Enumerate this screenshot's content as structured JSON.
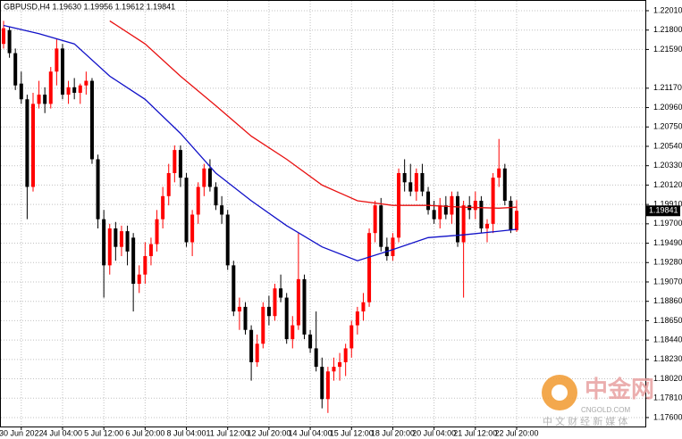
{
  "chart_data": {
    "type": "candlestick",
    "title": "GBPUSD,H4  1.19630 1.19956 1.19612 1.19841",
    "categories": [
      null,
      null,
      null,
      "30 Jun 2022",
      null,
      null,
      null,
      null,
      null,
      null,
      "4 Jul 04:00",
      null,
      null,
      null,
      null,
      null,
      null,
      "5 Jul 12:00",
      null,
      null,
      null,
      null,
      null,
      null,
      "6 Jul 20:00",
      null,
      null,
      null,
      null,
      null,
      null,
      "8 Jul 04:00",
      null,
      null,
      null,
      null,
      null,
      null,
      "11 Jul 12:00",
      null,
      null,
      null,
      null,
      null,
      null,
      "12 Jul 20:00",
      null,
      null,
      null,
      null,
      null,
      null,
      "14 Jul 04:00",
      null,
      null,
      null,
      null,
      null,
      null,
      "15 Jul 12:00",
      null,
      null,
      null,
      null,
      null,
      null,
      "18 Jul 20:00",
      null,
      null,
      null,
      null,
      null,
      null,
      "20 Jul 04:00",
      null,
      null,
      null,
      null,
      null,
      null,
      "21 Jul 12:00",
      null,
      null,
      null,
      null,
      null,
      null,
      "22 Jul 20:00"
    ],
    "ohlc": [
      [
        1.2165,
        1.219,
        1.216,
        1.2182
      ],
      [
        1.218,
        1.2184,
        1.215,
        1.2155
      ],
      [
        1.2155,
        1.216,
        1.2115,
        1.212
      ],
      [
        1.2122,
        1.2135,
        1.21,
        1.2105
      ],
      [
        1.2105,
        1.211,
        1.1975,
        1.201
      ],
      [
        1.201,
        1.2112,
        1.2005,
        1.21
      ],
      [
        1.21,
        1.2125,
        1.2095,
        1.211
      ],
      [
        1.211,
        1.2118,
        1.209,
        1.21
      ],
      [
        1.21,
        1.214,
        1.2095,
        1.2135
      ],
      [
        1.2135,
        1.217,
        1.212,
        1.216
      ],
      [
        1.216,
        1.2165,
        1.2105,
        1.211
      ],
      [
        1.211,
        1.2125,
        1.21,
        1.2118
      ],
      [
        1.2118,
        1.2128,
        1.2105,
        1.2112
      ],
      [
        1.2112,
        1.2122,
        1.21,
        1.212
      ],
      [
        1.212,
        1.2135,
        1.211,
        1.2125
      ],
      [
        1.2125,
        1.2128,
        1.2035,
        1.204
      ],
      [
        1.204,
        1.2045,
        1.1965,
        1.1975
      ],
      [
        1.1975,
        1.1985,
        1.189,
        1.1925
      ],
      [
        1.1925,
        1.197,
        1.1915,
        1.1965
      ],
      [
        1.1965,
        1.1972,
        1.193,
        1.1945
      ],
      [
        1.1945,
        1.1968,
        1.1935,
        1.1962
      ],
      [
        1.1962,
        1.1968,
        1.1925,
        1.194
      ],
      [
        1.1955,
        1.196,
        1.1875,
        1.1905
      ],
      [
        1.1905,
        1.1925,
        1.1895,
        1.1915
      ],
      [
        1.1915,
        1.195,
        1.1905,
        1.1935
      ],
      [
        1.1935,
        1.1955,
        1.1925,
        1.1948
      ],
      [
        1.1948,
        1.1985,
        1.194,
        1.1975
      ],
      [
        1.1975,
        1.201,
        1.1965,
        1.2
      ],
      [
        1.2,
        1.2035,
        1.199,
        1.2025
      ],
      [
        1.2025,
        1.2055,
        1.2015,
        1.205
      ],
      [
        1.205,
        1.2055,
        1.201,
        1.202
      ],
      [
        1.202,
        1.2025,
        1.1945,
        1.195
      ],
      [
        1.195,
        1.1985,
        1.1935,
        1.198
      ],
      [
        1.198,
        1.2015,
        1.197,
        1.201
      ],
      [
        1.201,
        1.2035,
        1.2,
        1.203
      ],
      [
        1.203,
        1.204,
        1.2005,
        1.201
      ],
      [
        1.201,
        1.2015,
        1.1985,
        1.199
      ],
      [
        1.199,
        1.2,
        1.197,
        1.198
      ],
      [
        1.198,
        1.1985,
        1.192,
        1.1925
      ],
      [
        1.1925,
        1.193,
        1.187,
        1.1875
      ],
      [
        1.1875,
        1.189,
        1.1855,
        1.188
      ],
      [
        1.188,
        1.1885,
        1.185,
        1.1855
      ],
      [
        1.1855,
        1.186,
        1.18,
        1.182
      ],
      [
        1.182,
        1.185,
        1.1815,
        1.184
      ],
      [
        1.184,
        1.1885,
        1.1835,
        1.188
      ],
      [
        1.188,
        1.1892,
        1.186,
        1.187
      ],
      [
        1.187,
        1.1905,
        1.1865,
        1.19
      ],
      [
        1.19,
        1.1915,
        1.1885,
        1.189
      ],
      [
        1.189,
        1.1895,
        1.184,
        1.1845
      ],
      [
        1.1845,
        1.187,
        1.1835,
        1.186
      ],
      [
        1.186,
        1.196,
        1.1855,
        1.191
      ],
      [
        1.191,
        1.1915,
        1.1845,
        1.185
      ],
      [
        1.185,
        1.1855,
        1.183,
        1.1835
      ],
      [
        1.1835,
        1.1875,
        1.181,
        1.1815
      ],
      [
        1.1815,
        1.1825,
        1.177,
        1.178
      ],
      [
        1.178,
        1.1815,
        1.1765,
        1.181
      ],
      [
        1.181,
        1.1825,
        1.18,
        1.1815
      ],
      [
        1.1815,
        1.183,
        1.18,
        1.182
      ],
      [
        1.182,
        1.184,
        1.1805,
        1.1835
      ],
      [
        1.1835,
        1.1865,
        1.1825,
        1.186
      ],
      [
        1.186,
        1.188,
        1.185,
        1.1875
      ],
      [
        1.1875,
        1.1895,
        1.1865,
        1.1885
      ],
      [
        1.1885,
        1.1965,
        1.188,
        1.196
      ],
      [
        1.196,
        1.1995,
        1.195,
        1.199
      ],
      [
        1.199,
        1.1998,
        1.194,
        1.1945
      ],
      [
        1.1945,
        1.1955,
        1.193,
        1.1935
      ],
      [
        1.1935,
        1.196,
        1.193,
        1.1955
      ],
      [
        1.1955,
        1.203,
        1.195,
        1.2025
      ],
      [
        1.2025,
        1.204,
        1.2005,
        1.2015
      ],
      [
        1.2015,
        1.2035,
        1.2,
        1.2005
      ],
      [
        1.2005,
        1.203,
        1.1995,
        1.2025
      ],
      [
        1.2025,
        1.2035,
        1.2,
        1.2005
      ],
      [
        1.2005,
        1.201,
        1.198,
        1.1985
      ],
      [
        1.1985,
        1.1995,
        1.197,
        1.1975
      ],
      [
        1.1975,
        1.1998,
        1.1965,
        1.199
      ],
      [
        1.199,
        1.2,
        1.1975,
        1.198
      ],
      [
        1.198,
        1.2005,
        1.197,
        1.2
      ],
      [
        1.2,
        1.2005,
        1.1945,
        1.195
      ],
      [
        1.195,
        1.1995,
        1.189,
        1.199
      ],
      [
        1.199,
        1.2,
        1.1975,
        1.1985
      ],
      [
        1.1985,
        1.2005,
        1.1975,
        1.1995
      ],
      [
        1.1995,
        1.2,
        1.196,
        1.1965
      ],
      [
        1.1965,
        1.1975,
        1.195,
        1.197
      ],
      [
        1.197,
        1.2025,
        1.196,
        1.202
      ],
      [
        1.202,
        1.2062,
        1.201,
        1.203
      ],
      [
        1.203,
        1.2035,
        1.199,
        1.1995
      ],
      [
        1.1995,
        1.2,
        1.196,
        1.1963
      ],
      [
        1.1963,
        1.19956,
        1.19612,
        1.19841
      ]
    ],
    "up_color": "#ff0000",
    "down_color": "#000000",
    "lines": [
      {
        "color": "#e81010",
        "x": [
          0,
          6,
          12,
          18,
          24,
          30,
          36,
          42,
          48,
          54,
          60,
          66,
          72,
          78,
          84,
          87
        ],
        "values": [
          null,
          null,
          null,
          1.219,
          1.2165,
          1.213,
          1.2098,
          1.2065,
          1.204,
          1.2012,
          1.1995,
          1.199,
          1.199,
          1.1988,
          1.1987,
          1.1988
        ]
      },
      {
        "color": "#1010c8",
        "x": [
          0,
          6,
          12,
          18,
          24,
          30,
          36,
          42,
          48,
          54,
          60,
          66,
          72,
          78,
          84,
          87
        ],
        "values": [
          1.2185,
          1.2176,
          1.2165,
          1.213,
          1.2105,
          1.2068,
          1.2025,
          1.1995,
          1.1968,
          1.1945,
          1.193,
          1.1942,
          1.1955,
          1.1958,
          1.1962,
          1.1964
        ]
      }
    ],
    "ylim": [
      1.17503,
      1.22126
    ],
    "yticks": [
      {
        "value": 1.2201,
        "label": "1.22010"
      },
      {
        "value": 1.218,
        "label": "1.21800"
      },
      {
        "value": 1.2159,
        "label": "1.21590"
      },
      {
        "value": 1.2117,
        "label": "1.21170"
      },
      {
        "value": 1.2096,
        "label": "1.20960"
      },
      {
        "value": 1.2075,
        "label": "1.20750"
      },
      {
        "value": 1.2054,
        "label": "1.20540"
      },
      {
        "value": 1.2033,
        "label": "1.20330"
      },
      {
        "value": 1.2012,
        "label": "1.20120"
      },
      {
        "value": 1.1991,
        "label": "1.19910"
      },
      {
        "value": 1.197,
        "label": "1.19700"
      },
      {
        "value": 1.1949,
        "label": "1.19490"
      },
      {
        "value": 1.1928,
        "label": "1.19280"
      },
      {
        "value": 1.1907,
        "label": "1.19070"
      },
      {
        "value": 1.1886,
        "label": "1.18860"
      },
      {
        "value": 1.1865,
        "label": "1.18650"
      },
      {
        "value": 1.1844,
        "label": "1.18440"
      },
      {
        "value": 1.1823,
        "label": "1.18230"
      },
      {
        "value": 1.1802,
        "label": "1.18020"
      },
      {
        "value": 1.1781,
        "label": "1.17810"
      },
      {
        "value": 1.176,
        "label": "1.17600"
      }
    ],
    "current_price": 1.19841,
    "grid": true
  },
  "watermark": {
    "name": "中金网",
    "site": "CNGOLD.COM",
    "tagline": "中 文 财 经 新 媒 体"
  }
}
